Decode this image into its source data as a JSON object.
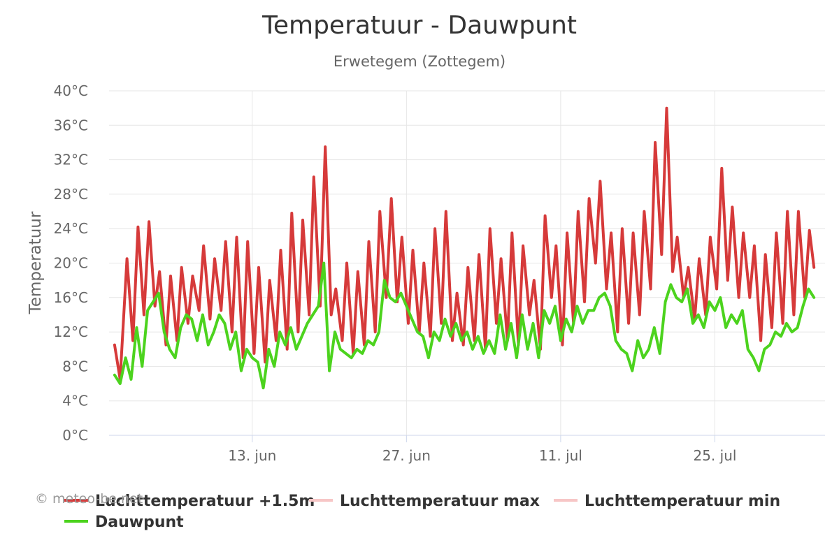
{
  "chart_data": {
    "type": "line",
    "title": "Temperatuur - Dauwpunt",
    "subtitle": "Erwetegem (Zottegem)",
    "ylabel": "Temperatuur",
    "xlabel": "",
    "ylim": [
      0,
      40
    ],
    "yticks": [
      "0°C",
      "4°C",
      "8°C",
      "12°C",
      "16°C",
      "20°C",
      "24°C",
      "28°C",
      "32°C",
      "36°C",
      "40°C"
    ],
    "xrange": [
      "2024-05-31",
      "2024-08-04"
    ],
    "xticks": [
      {
        "date": "2024-06-13",
        "label": "13. jun"
      },
      {
        "date": "2024-06-27",
        "label": "27. jun"
      },
      {
        "date": "2024-07-11",
        "label": "11. jul"
      },
      {
        "date": "2024-07-25",
        "label": "25. jul"
      }
    ],
    "grid": true,
    "legend_position": "bottom",
    "credit": "© meteo-be.net",
    "series": [
      {
        "name": "Luchttemperatuur +1.5m",
        "color": "#d63a3a",
        "points": [
          [
            "2024-05-31T12:00",
            10.5
          ],
          [
            "2024-06-01T00:00",
            6.5
          ],
          [
            "2024-06-01T15:00",
            20.5
          ],
          [
            "2024-06-02T04:00",
            11
          ],
          [
            "2024-06-02T15:00",
            24.2
          ],
          [
            "2024-06-03T04:00",
            14
          ],
          [
            "2024-06-03T15:00",
            24.8
          ],
          [
            "2024-06-04T04:00",
            15
          ],
          [
            "2024-06-04T14:00",
            19
          ],
          [
            "2024-06-05T04:00",
            10.5
          ],
          [
            "2024-06-05T14:00",
            18.5
          ],
          [
            "2024-06-06T04:00",
            11
          ],
          [
            "2024-06-06T14:00",
            19.5
          ],
          [
            "2024-06-07T04:00",
            13
          ],
          [
            "2024-06-07T14:00",
            18.5
          ],
          [
            "2024-06-08T04:00",
            14.5
          ],
          [
            "2024-06-08T14:00",
            22
          ],
          [
            "2024-06-09T04:00",
            13.5
          ],
          [
            "2024-06-09T14:00",
            20.5
          ],
          [
            "2024-06-10T04:00",
            14.5
          ],
          [
            "2024-06-10T14:00",
            22.5
          ],
          [
            "2024-06-11T04:00",
            12
          ],
          [
            "2024-06-11T14:00",
            23
          ],
          [
            "2024-06-12T04:00",
            9
          ],
          [
            "2024-06-12T14:00",
            22.5
          ],
          [
            "2024-06-13T04:00",
            9.5
          ],
          [
            "2024-06-13T14:00",
            19.5
          ],
          [
            "2024-06-14T04:00",
            8.5
          ],
          [
            "2024-06-14T14:00",
            18
          ],
          [
            "2024-06-15T04:00",
            11
          ],
          [
            "2024-06-15T14:00",
            21.5
          ],
          [
            "2024-06-16T04:00",
            10
          ],
          [
            "2024-06-16T14:00",
            25.8
          ],
          [
            "2024-06-17T04:00",
            12
          ],
          [
            "2024-06-17T14:00",
            25
          ],
          [
            "2024-06-18T04:00",
            14
          ],
          [
            "2024-06-18T14:00",
            30
          ],
          [
            "2024-06-19T04:00",
            15
          ],
          [
            "2024-06-19T15:00",
            33.5
          ],
          [
            "2024-06-20T04:00",
            14
          ],
          [
            "2024-06-20T14:00",
            17
          ],
          [
            "2024-06-21T04:00",
            11
          ],
          [
            "2024-06-21T14:00",
            20
          ],
          [
            "2024-06-22T04:00",
            9.5
          ],
          [
            "2024-06-22T14:00",
            19
          ],
          [
            "2024-06-23T04:00",
            10.5
          ],
          [
            "2024-06-23T14:00",
            22.5
          ],
          [
            "2024-06-24T04:00",
            12
          ],
          [
            "2024-06-24T14:00",
            26
          ],
          [
            "2024-06-25T04:00",
            16
          ],
          [
            "2024-06-25T15:00",
            27.5
          ],
          [
            "2024-06-26T04:00",
            15.5
          ],
          [
            "2024-06-26T14:00",
            23
          ],
          [
            "2024-06-27T04:00",
            13
          ],
          [
            "2024-06-27T14:00",
            21.5
          ],
          [
            "2024-06-28T04:00",
            12
          ],
          [
            "2024-06-28T14:00",
            20
          ],
          [
            "2024-06-29T04:00",
            11.5
          ],
          [
            "2024-06-29T14:00",
            24
          ],
          [
            "2024-06-30T04:00",
            13
          ],
          [
            "2024-06-30T14:00",
            26
          ],
          [
            "2024-07-01T04:00",
            11
          ],
          [
            "2024-07-01T14:00",
            16.5
          ],
          [
            "2024-07-02T04:00",
            10.5
          ],
          [
            "2024-07-02T14:00",
            19.5
          ],
          [
            "2024-07-03T04:00",
            11
          ],
          [
            "2024-07-03T14:00",
            21
          ],
          [
            "2024-07-04T04:00",
            10
          ],
          [
            "2024-07-04T14:00",
            24
          ],
          [
            "2024-07-05T04:00",
            13
          ],
          [
            "2024-07-05T14:00",
            20.5
          ],
          [
            "2024-07-06T04:00",
            11
          ],
          [
            "2024-07-06T14:00",
            23.5
          ],
          [
            "2024-07-07T04:00",
            10.5
          ],
          [
            "2024-07-07T14:00",
            22
          ],
          [
            "2024-07-08T04:00",
            14
          ],
          [
            "2024-07-08T14:00",
            18
          ],
          [
            "2024-07-09T04:00",
            10
          ],
          [
            "2024-07-09T14:00",
            25.5
          ],
          [
            "2024-07-10T04:00",
            16
          ],
          [
            "2024-07-10T14:00",
            22
          ],
          [
            "2024-07-11T04:00",
            10.5
          ],
          [
            "2024-07-11T14:00",
            23.5
          ],
          [
            "2024-07-12T04:00",
            13
          ],
          [
            "2024-07-12T14:00",
            26
          ],
          [
            "2024-07-13T04:00",
            15.5
          ],
          [
            "2024-07-13T14:00",
            27.5
          ],
          [
            "2024-07-14T04:00",
            20
          ],
          [
            "2024-07-14T14:00",
            29.5
          ],
          [
            "2024-07-15T04:00",
            17
          ],
          [
            "2024-07-15T14:00",
            23.5
          ],
          [
            "2024-07-16T04:00",
            12
          ],
          [
            "2024-07-16T14:00",
            24
          ],
          [
            "2024-07-17T04:00",
            13
          ],
          [
            "2024-07-17T14:00",
            23.5
          ],
          [
            "2024-07-18T04:00",
            14
          ],
          [
            "2024-07-18T14:00",
            26
          ],
          [
            "2024-07-19T04:00",
            17
          ],
          [
            "2024-07-19T14:00",
            34
          ],
          [
            "2024-07-20T04:00",
            21
          ],
          [
            "2024-07-20T15:00",
            38
          ],
          [
            "2024-07-21T04:00",
            19
          ],
          [
            "2024-07-21T14:00",
            23
          ],
          [
            "2024-07-22T04:00",
            16
          ],
          [
            "2024-07-22T14:00",
            19.5
          ],
          [
            "2024-07-23T04:00",
            13.5
          ],
          [
            "2024-07-23T14:00",
            20.5
          ],
          [
            "2024-07-24T04:00",
            14
          ],
          [
            "2024-07-24T14:00",
            23
          ],
          [
            "2024-07-25T04:00",
            17
          ],
          [
            "2024-07-25T15:00",
            31
          ],
          [
            "2024-07-26T04:00",
            18
          ],
          [
            "2024-07-26T14:00",
            26.5
          ],
          [
            "2024-07-27T04:00",
            16
          ],
          [
            "2024-07-27T14:00",
            23.5
          ],
          [
            "2024-07-28T04:00",
            16
          ],
          [
            "2024-07-28T14:00",
            22
          ],
          [
            "2024-07-29T04:00",
            11
          ],
          [
            "2024-07-29T14:00",
            21
          ],
          [
            "2024-07-30T04:00",
            12.5
          ],
          [
            "2024-07-30T14:00",
            23.5
          ],
          [
            "2024-07-31T04:00",
            13
          ],
          [
            "2024-07-31T14:00",
            26
          ],
          [
            "2024-08-01T04:00",
            14
          ],
          [
            "2024-08-01T14:00",
            26
          ],
          [
            "2024-08-02T04:00",
            16
          ],
          [
            "2024-08-02T14:00",
            23.8
          ],
          [
            "2024-08-03T00:00",
            19.5
          ]
        ]
      },
      {
        "name": "Luchttemperatuur max",
        "color": "#f7c6c6"
      },
      {
        "name": "Luchttemperatuur min",
        "color": "#f7c6c6"
      },
      {
        "name": "Dauwpunt",
        "color": "#4cd31e",
        "points": [
          [
            "2024-05-31T12:00",
            7
          ],
          [
            "2024-06-01T00:00",
            6
          ],
          [
            "2024-06-01T12:00",
            9
          ],
          [
            "2024-06-02T00:00",
            6.5
          ],
          [
            "2024-06-02T12:00",
            12.5
          ],
          [
            "2024-06-03T00:00",
            8
          ],
          [
            "2024-06-03T12:00",
            14.5
          ],
          [
            "2024-06-04T00:00",
            15.5
          ],
          [
            "2024-06-04T12:00",
            16.5
          ],
          [
            "2024-06-05T00:00",
            12
          ],
          [
            "2024-06-05T12:00",
            10
          ],
          [
            "2024-06-06T00:00",
            9
          ],
          [
            "2024-06-06T12:00",
            12.5
          ],
          [
            "2024-06-07T00:00",
            14
          ],
          [
            "2024-06-07T12:00",
            13.5
          ],
          [
            "2024-06-08T00:00",
            11
          ],
          [
            "2024-06-08T12:00",
            14
          ],
          [
            "2024-06-09T00:00",
            10.5
          ],
          [
            "2024-06-09T12:00",
            12
          ],
          [
            "2024-06-10T00:00",
            14
          ],
          [
            "2024-06-10T12:00",
            13
          ],
          [
            "2024-06-11T00:00",
            10
          ],
          [
            "2024-06-11T12:00",
            12
          ],
          [
            "2024-06-12T00:00",
            7.5
          ],
          [
            "2024-06-12T12:00",
            10
          ],
          [
            "2024-06-13T00:00",
            9
          ],
          [
            "2024-06-13T12:00",
            8.5
          ],
          [
            "2024-06-14T00:00",
            5.5
          ],
          [
            "2024-06-14T12:00",
            10
          ],
          [
            "2024-06-15T00:00",
            8
          ],
          [
            "2024-06-15T12:00",
            12
          ],
          [
            "2024-06-16T00:00",
            10.5
          ],
          [
            "2024-06-16T12:00",
            12.5
          ],
          [
            "2024-06-17T00:00",
            10
          ],
          [
            "2024-06-17T12:00",
            11.5
          ],
          [
            "2024-06-18T00:00",
            13
          ],
          [
            "2024-06-18T12:00",
            14
          ],
          [
            "2024-06-19T00:00",
            15
          ],
          [
            "2024-06-19T12:00",
            20
          ],
          [
            "2024-06-20T00:00",
            7.5
          ],
          [
            "2024-06-20T12:00",
            12
          ],
          [
            "2024-06-21T00:00",
            10
          ],
          [
            "2024-06-21T12:00",
            9.5
          ],
          [
            "2024-06-22T00:00",
            9
          ],
          [
            "2024-06-22T12:00",
            10
          ],
          [
            "2024-06-23T00:00",
            9.5
          ],
          [
            "2024-06-23T12:00",
            11
          ],
          [
            "2024-06-24T00:00",
            10.5
          ],
          [
            "2024-06-24T12:00",
            12
          ],
          [
            "2024-06-25T00:00",
            18
          ],
          [
            "2024-06-25T12:00",
            16
          ],
          [
            "2024-06-26T00:00",
            15.5
          ],
          [
            "2024-06-26T12:00",
            16.5
          ],
          [
            "2024-06-27T00:00",
            15
          ],
          [
            "2024-06-27T12:00",
            13.5
          ],
          [
            "2024-06-28T00:00",
            12
          ],
          [
            "2024-06-28T12:00",
            11.5
          ],
          [
            "2024-06-29T00:00",
            9
          ],
          [
            "2024-06-29T12:00",
            12
          ],
          [
            "2024-06-30T00:00",
            11
          ],
          [
            "2024-06-30T12:00",
            13.5
          ],
          [
            "2024-07-01T00:00",
            11.5
          ],
          [
            "2024-07-01T12:00",
            13
          ],
          [
            "2024-07-02T00:00",
            11
          ],
          [
            "2024-07-02T12:00",
            12
          ],
          [
            "2024-07-03T00:00",
            10
          ],
          [
            "2024-07-03T12:00",
            11.5
          ],
          [
            "2024-07-04T00:00",
            9.5
          ],
          [
            "2024-07-04T12:00",
            11
          ],
          [
            "2024-07-05T00:00",
            9.5
          ],
          [
            "2024-07-05T12:00",
            14
          ],
          [
            "2024-07-06T00:00",
            10
          ],
          [
            "2024-07-06T12:00",
            13
          ],
          [
            "2024-07-07T00:00",
            9
          ],
          [
            "2024-07-07T12:00",
            14
          ],
          [
            "2024-07-08T00:00",
            10
          ],
          [
            "2024-07-08T12:00",
            13
          ],
          [
            "2024-07-09T00:00",
            9
          ],
          [
            "2024-07-09T12:00",
            14.5
          ],
          [
            "2024-07-10T00:00",
            13
          ],
          [
            "2024-07-10T12:00",
            15
          ],
          [
            "2024-07-11T00:00",
            11
          ],
          [
            "2024-07-11T12:00",
            13.5
          ],
          [
            "2024-07-12T00:00",
            12
          ],
          [
            "2024-07-12T12:00",
            15
          ],
          [
            "2024-07-13T00:00",
            13
          ],
          [
            "2024-07-13T12:00",
            14.5
          ],
          [
            "2024-07-14T00:00",
            14.5
          ],
          [
            "2024-07-14T12:00",
            16
          ],
          [
            "2024-07-15T00:00",
            16.5
          ],
          [
            "2024-07-15T12:00",
            15
          ],
          [
            "2024-07-16T00:00",
            11
          ],
          [
            "2024-07-16T12:00",
            10
          ],
          [
            "2024-07-17T00:00",
            9.5
          ],
          [
            "2024-07-17T12:00",
            7.5
          ],
          [
            "2024-07-18T00:00",
            11
          ],
          [
            "2024-07-18T12:00",
            9
          ],
          [
            "2024-07-19T00:00",
            10
          ],
          [
            "2024-07-19T12:00",
            12.5
          ],
          [
            "2024-07-20T00:00",
            9.5
          ],
          [
            "2024-07-20T12:00",
            15.5
          ],
          [
            "2024-07-21T00:00",
            17.5
          ],
          [
            "2024-07-21T12:00",
            16
          ],
          [
            "2024-07-22T00:00",
            15.5
          ],
          [
            "2024-07-22T12:00",
            17
          ],
          [
            "2024-07-23T00:00",
            13
          ],
          [
            "2024-07-23T12:00",
            14
          ],
          [
            "2024-07-24T00:00",
            12.5
          ],
          [
            "2024-07-24T12:00",
            15.5
          ],
          [
            "2024-07-25T00:00",
            14.5
          ],
          [
            "2024-07-25T12:00",
            16
          ],
          [
            "2024-07-26T00:00",
            12.5
          ],
          [
            "2024-07-26T12:00",
            14
          ],
          [
            "2024-07-27T00:00",
            13
          ],
          [
            "2024-07-27T12:00",
            14.5
          ],
          [
            "2024-07-28T00:00",
            10
          ],
          [
            "2024-07-28T12:00",
            9
          ],
          [
            "2024-07-29T00:00",
            7.5
          ],
          [
            "2024-07-29T12:00",
            10
          ],
          [
            "2024-07-30T00:00",
            10.5
          ],
          [
            "2024-07-30T12:00",
            12
          ],
          [
            "2024-07-31T00:00",
            11.5
          ],
          [
            "2024-07-31T12:00",
            13
          ],
          [
            "2024-08-01T00:00",
            12
          ],
          [
            "2024-08-01T12:00",
            12.5
          ],
          [
            "2024-08-02T00:00",
            15
          ],
          [
            "2024-08-02T12:00",
            17
          ],
          [
            "2024-08-03T00:00",
            16
          ]
        ]
      }
    ]
  }
}
